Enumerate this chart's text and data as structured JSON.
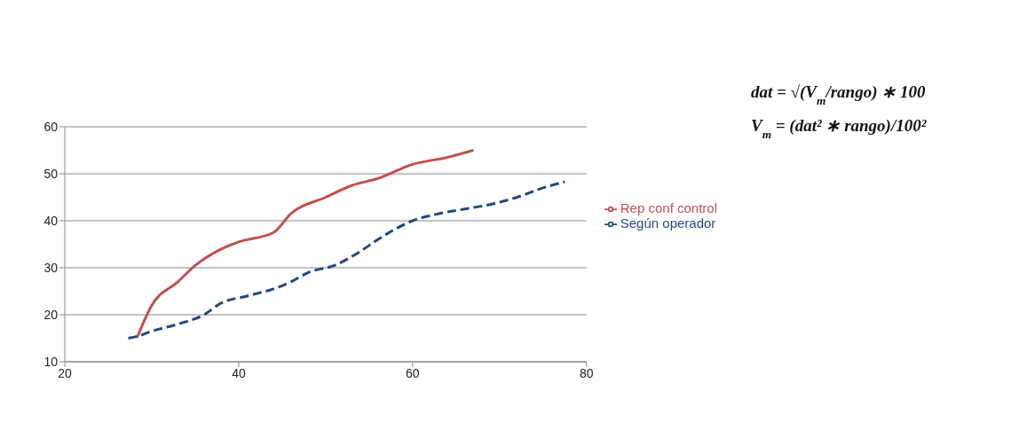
{
  "chart_data": {
    "type": "line",
    "series": [
      {
        "name": "Rep conf control",
        "color": "#c0504d",
        "line_style": "solid",
        "x": [
          28.3,
          30,
          33,
          35,
          38,
          40,
          44,
          46,
          50,
          53,
          56,
          60,
          64,
          67
        ],
        "values": [
          15.1,
          22,
          27,
          30.5,
          34,
          35.5,
          37.5,
          41.5,
          45,
          47.5,
          49,
          52,
          53.5,
          55
        ]
      },
      {
        "name": "Según operador",
        "color": "#1f497d",
        "line_style": "dashed",
        "x": [
          27.3,
          28.5,
          30,
          33,
          36,
          38,
          41,
          44,
          46,
          48,
          51,
          54,
          56,
          60,
          63,
          66,
          69,
          72,
          75,
          77.5
        ],
        "values": [
          15,
          15.5,
          16.5,
          18,
          20,
          22.5,
          24,
          25.5,
          27,
          29,
          30.5,
          33.5,
          36,
          40,
          41.5,
          42.5,
          43.5,
          45,
          47,
          48.3
        ]
      }
    ],
    "xlim": [
      20,
      80
    ],
    "xticks": [
      20,
      40,
      60,
      80
    ],
    "ylim": [
      10,
      60
    ],
    "yticks": [
      10,
      20,
      30,
      40,
      50,
      60
    ],
    "grid": "y",
    "legend": "right",
    "marker": "none",
    "annotations": [
      "dat = √(V$_{m}$/rango) ∗ 100",
      "V$_{m}$ = (dat² ∗ rango)/100²"
    ]
  }
}
